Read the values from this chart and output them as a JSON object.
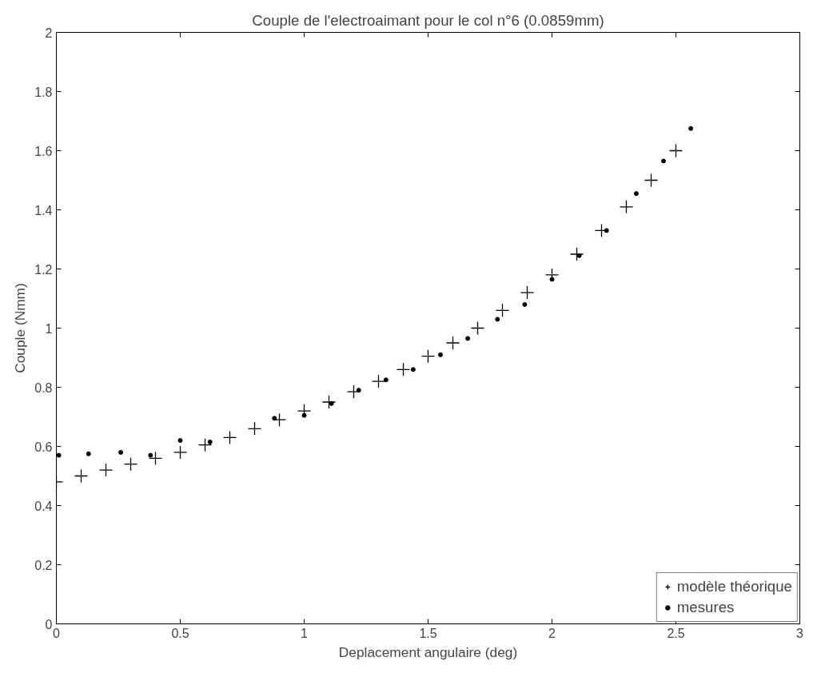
{
  "chart_data": {
    "type": "scatter",
    "title": "Couple de l'electroaimant pour le col n°6 (0.0859mm)",
    "xlabel": "Deplacement angulaire (deg)",
    "ylabel": "Couple (Nmm)",
    "xlim": [
      0,
      3
    ],
    "ylim": [
      0,
      2
    ],
    "xticks": [
      0,
      0.5,
      1,
      1.5,
      2,
      2.5,
      3
    ],
    "yticks": [
      0,
      0.2,
      0.4,
      0.6,
      0.8,
      1,
      1.2,
      1.4,
      1.6,
      1.8,
      2
    ],
    "grid": false,
    "legend": "bottom right",
    "series": [
      {
        "name": "modèle théorique",
        "color": "#000000",
        "marker": "cross",
        "x": [
          0,
          0.1,
          0.2,
          0.3,
          0.4,
          0.5,
          0.6,
          0.7,
          0.8,
          0.9,
          1.0,
          1.1,
          1.2,
          1.3,
          1.4,
          1.5,
          1.6,
          1.7,
          1.8,
          1.9,
          2.0,
          2.1,
          2.2,
          2.3,
          2.4,
          2.5
        ],
        "values": [
          0.48,
          0.5,
          0.52,
          0.54,
          0.56,
          0.58,
          0.605,
          0.63,
          0.66,
          0.69,
          0.72,
          0.75,
          0.785,
          0.82,
          0.86,
          0.905,
          0.95,
          1.0,
          1.06,
          1.12,
          1.18,
          1.25,
          1.33,
          1.41,
          1.5,
          1.6
        ]
      },
      {
        "name": "mesures",
        "color": "#000000",
        "marker": "circle",
        "x": [
          0.01,
          0.13,
          0.26,
          0.38,
          0.5,
          0.62,
          0.88,
          1.0,
          1.11,
          1.22,
          1.33,
          1.44,
          1.55,
          1.66,
          1.78,
          1.89,
          2.0,
          2.11,
          2.22,
          2.34,
          2.45,
          2.56
        ],
        "values": [
          0.57,
          0.575,
          0.58,
          0.57,
          0.62,
          0.615,
          0.695,
          0.705,
          0.745,
          0.79,
          0.825,
          0.86,
          0.91,
          0.965,
          1.03,
          1.08,
          1.165,
          1.245,
          1.33,
          1.455,
          1.565,
          1.675
        ]
      }
    ]
  }
}
